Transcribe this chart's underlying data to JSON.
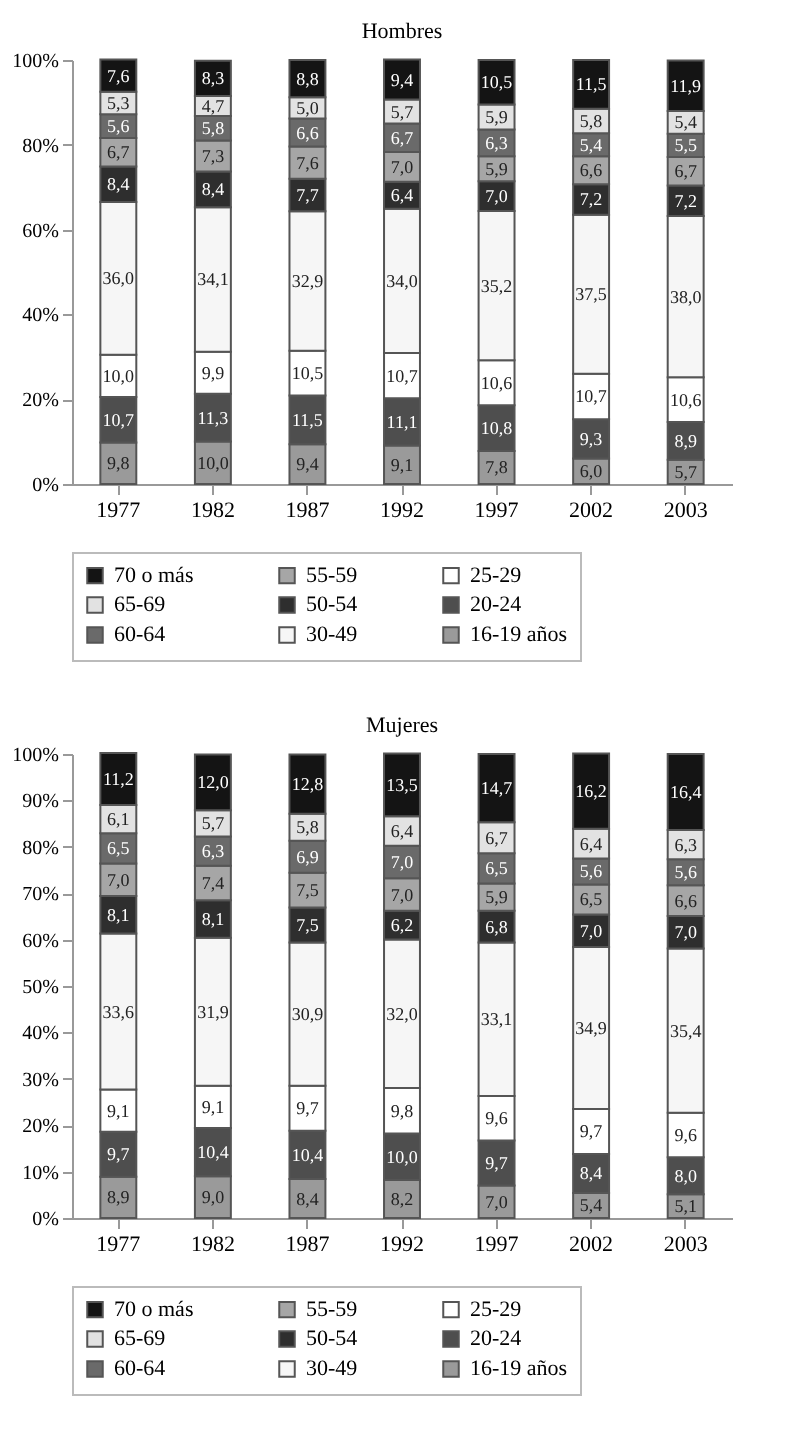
{
  "chart_data": [
    {
      "type": "bar",
      "title": "Hombres",
      "stacked": true,
      "categories": [
        "1977",
        "1982",
        "1987",
        "1992",
        "1997",
        "2002",
        "2003"
      ],
      "ylim": [
        0,
        100
      ],
      "yticks": [
        {
          "value": 0,
          "label": "0%"
        },
        {
          "value": 20,
          "label": "20%"
        },
        {
          "value": 40,
          "label": "40%"
        },
        {
          "value": 60,
          "label": "60%"
        },
        {
          "value": 80,
          "label": "80%"
        },
        {
          "value": 100,
          "label": "100%"
        }
      ],
      "legend": "bottom",
      "grid": false,
      "series": [
        {
          "name": "16-19 años",
          "color": "#9a9a9a",
          "values": [
            9.8,
            10.0,
            9.4,
            9.1,
            7.8,
            6.0,
            5.7
          ],
          "value_labels": [
            "9,8",
            "10,0",
            "9,4",
            "9,1",
            "7,8",
            "6,0",
            "5,7"
          ]
        },
        {
          "name": "20-24",
          "color": "#4e4e4e",
          "values": [
            10.7,
            11.3,
            11.5,
            11.1,
            10.8,
            9.3,
            8.9
          ],
          "value_labels": [
            "10,7",
            "11,3",
            "11,5",
            "11,1",
            "10,8",
            "9,3",
            "8,9"
          ]
        },
        {
          "name": "25-29",
          "color": "#ffffff",
          "values": [
            10.0,
            9.9,
            10.5,
            10.7,
            10.6,
            10.7,
            10.6
          ],
          "value_labels": [
            "10,0",
            "9,9",
            "10,5",
            "10,7",
            "10,6",
            "10,7",
            "10,6"
          ]
        },
        {
          "name": "30-49",
          "color": "#f6f6f6",
          "values": [
            36.0,
            34.1,
            32.9,
            34.0,
            35.2,
            37.5,
            38.0
          ],
          "value_labels": [
            "36,0",
            "34,1",
            "32,9",
            "34,0",
            "35,2",
            "37,5",
            "38,0"
          ]
        },
        {
          "name": "50-54",
          "color": "#2e2e2e",
          "values": [
            8.4,
            8.4,
            7.7,
            6.4,
            7.0,
            7.2,
            7.2
          ],
          "value_labels": [
            "8,4",
            "8,4",
            "7,7",
            "6,4",
            "7,0",
            "7,2",
            "7,2"
          ]
        },
        {
          "name": "55-59",
          "color": "#a6a6a6",
          "values": [
            6.7,
            7.3,
            7.6,
            7.0,
            5.9,
            6.6,
            6.7
          ],
          "value_labels": [
            "6,7",
            "7,3",
            "7,6",
            "7,0",
            "5,9",
            "6,6",
            "6,7"
          ]
        },
        {
          "name": "60-64",
          "color": "#6a6a6a",
          "values": [
            5.6,
            5.8,
            6.6,
            6.7,
            6.3,
            5.4,
            5.5
          ],
          "value_labels": [
            "5,6",
            "5,8",
            "6,6",
            "6,7",
            "6,3",
            "5,4",
            "5,5"
          ]
        },
        {
          "name": "65-69",
          "color": "#e2e2e2",
          "values": [
            5.3,
            4.7,
            5.0,
            5.7,
            5.9,
            5.8,
            5.4
          ],
          "value_labels": [
            "5,3",
            "4,7",
            "5,0",
            "5,7",
            "5,9",
            "5,8",
            "5,4"
          ]
        },
        {
          "name": "70 o más",
          "color": "#141414",
          "values": [
            7.6,
            8.3,
            8.8,
            9.4,
            10.5,
            11.5,
            11.9
          ],
          "value_labels": [
            "7,6",
            "8,3",
            "8,8",
            "9,4",
            "10,5",
            "11,5",
            "11,9"
          ]
        }
      ]
    },
    {
      "type": "bar",
      "title": "Mujeres",
      "stacked": true,
      "categories": [
        "1977",
        "1982",
        "1987",
        "1992",
        "1997",
        "2002",
        "2003"
      ],
      "ylim": [
        0,
        100
      ],
      "yticks": [
        {
          "value": 0,
          "label": "0%"
        },
        {
          "value": 10,
          "label": "10%"
        },
        {
          "value": 20,
          "label": "20%"
        },
        {
          "value": 30,
          "label": "30%"
        },
        {
          "value": 40,
          "label": "40%"
        },
        {
          "value": 50,
          "label": "50%"
        },
        {
          "value": 60,
          "label": "60%"
        },
        {
          "value": 70,
          "label": "70%"
        },
        {
          "value": 80,
          "label": "80%"
        },
        {
          "value": 90,
          "label": "90%"
        },
        {
          "value": 100,
          "label": "100%"
        }
      ],
      "legend": "bottom",
      "grid": false,
      "series": [
        {
          "name": "16-19 años",
          "color": "#9a9a9a",
          "values": [
            8.9,
            9.0,
            8.4,
            8.2,
            7.0,
            5.4,
            5.1
          ],
          "value_labels": [
            "8,9",
            "9,0",
            "8,4",
            "8,2",
            "7,0",
            "5,4",
            "5,1"
          ]
        },
        {
          "name": "20-24",
          "color": "#4e4e4e",
          "values": [
            9.7,
            10.4,
            10.4,
            10.0,
            9.7,
            8.4,
            8.0
          ],
          "value_labels": [
            "9,7",
            "10,4",
            "10,4",
            "10,0",
            "9,7",
            "8,4",
            "8,0"
          ]
        },
        {
          "name": "25-29",
          "color": "#ffffff",
          "values": [
            9.1,
            9.1,
            9.7,
            9.8,
            9.6,
            9.7,
            9.6
          ],
          "value_labels": [
            "9,1",
            "9,1",
            "9,7",
            "9,8",
            "9,6",
            "9,7",
            "9,6"
          ]
        },
        {
          "name": "30-49",
          "color": "#f6f6f6",
          "values": [
            33.6,
            31.9,
            30.9,
            32.0,
            33.1,
            34.9,
            35.4
          ],
          "value_labels": [
            "33,6",
            "31,9",
            "30,9",
            "32,0",
            "33,1",
            "34,9",
            "35,4"
          ]
        },
        {
          "name": "50-54",
          "color": "#2e2e2e",
          "values": [
            8.1,
            8.1,
            7.5,
            6.2,
            6.8,
            7.0,
            7.0
          ],
          "value_labels": [
            "8,1",
            "8,1",
            "7,5",
            "6,2",
            "6,8",
            "7,0",
            "7,0"
          ]
        },
        {
          "name": "55-59",
          "color": "#a6a6a6",
          "values": [
            7.0,
            7.4,
            7.5,
            7.0,
            5.9,
            6.5,
            6.6
          ],
          "value_labels": [
            "7,0",
            "7,4",
            "7,5",
            "7,0",
            "5,9",
            "6,5",
            "6,6"
          ]
        },
        {
          "name": "60-64",
          "color": "#6a6a6a",
          "values": [
            6.5,
            6.3,
            6.9,
            7.0,
            6.5,
            5.6,
            5.6
          ],
          "value_labels": [
            "6,5",
            "6,3",
            "6,9",
            "7,0",
            "6,5",
            "5,6",
            "5,6"
          ]
        },
        {
          "name": "65-69",
          "color": "#e2e2e2",
          "values": [
            6.1,
            5.7,
            5.8,
            6.4,
            6.7,
            6.4,
            6.3
          ],
          "value_labels": [
            "6,1",
            "5,7",
            "5,8",
            "6,4",
            "6,7",
            "6,4",
            "6,3"
          ]
        },
        {
          "name": "70 o más",
          "color": "#141414",
          "values": [
            11.2,
            12.0,
            12.8,
            13.5,
            14.7,
            16.2,
            16.4
          ],
          "value_labels": [
            "11,2",
            "12,0",
            "12,8",
            "13,5",
            "14,7",
            "16,2",
            "16,4"
          ]
        }
      ]
    }
  ]
}
